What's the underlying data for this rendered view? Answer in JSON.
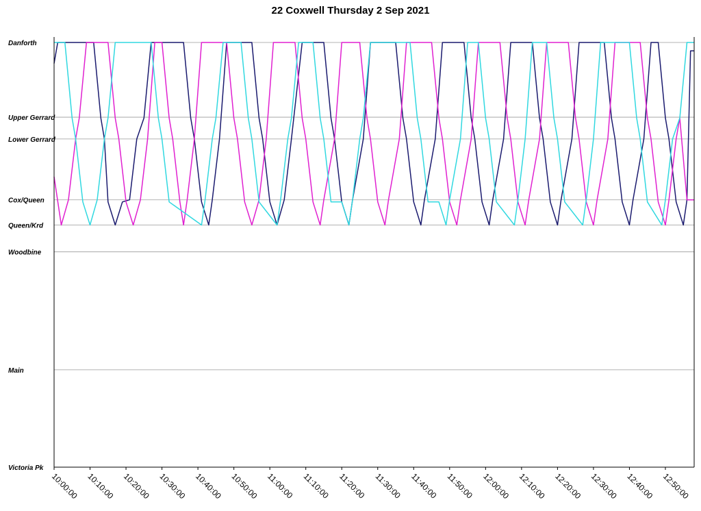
{
  "chart_data": {
    "type": "line",
    "title": "22 Coxwell Thursday 2 Sep 2021",
    "xlabel": "",
    "ylabel": "",
    "x_range": [
      "10:00:00",
      "12:58:00"
    ],
    "x_ticks": [
      "10:00:00",
      "10:10:00",
      "10:20:00",
      "10:30:00",
      "10:40:00",
      "10:50:00",
      "11:00:00",
      "11:10:00",
      "11:20:00",
      "11:30:00",
      "11:40:00",
      "11:50:00",
      "12:00:00",
      "12:10:00",
      "12:20:00",
      "12:30:00",
      "12:40:00",
      "12:50:00"
    ],
    "y_stops": [
      {
        "name": "Danforth",
        "pos": 0
      },
      {
        "name": "Upper Gerrard",
        "pos": 1.78
      },
      {
        "name": "Lower Gerrard",
        "pos": 2.3
      },
      {
        "name": "Cox/Queen",
        "pos": 3.75
      },
      {
        "name": "Queen/Krd",
        "pos": 4.35
      },
      {
        "name": "Woodbine",
        "pos": 4.99
      },
      {
        "name": "Main",
        "pos": 7.8
      },
      {
        "name": "Victoria Pk",
        "pos": 10.12
      }
    ],
    "grid": true,
    "legend": "none",
    "series": [
      {
        "color": "#1a1a6e",
        "points": [
          [
            "10:00:00",
            0.5
          ],
          [
            "10:01:00",
            0
          ],
          [
            "10:11:00",
            0
          ],
          [
            "10:13:00",
            1.8
          ],
          [
            "10:14:00",
            2.3
          ],
          [
            "10:15:00",
            3.8
          ],
          [
            "10:17:00",
            4.35
          ],
          [
            "10:19:00",
            3.8
          ],
          [
            "10:21:00",
            3.75
          ],
          [
            "10:23:00",
            2.3
          ],
          [
            "10:25:00",
            1.8
          ],
          [
            "10:27:00",
            0
          ],
          [
            "10:36:00",
            0
          ],
          [
            "10:38:00",
            1.8
          ],
          [
            "10:39:00",
            2.3
          ],
          [
            "10:41:00",
            3.8
          ],
          [
            "10:43:00",
            4.35
          ],
          [
            "10:44:00",
            3.75
          ],
          [
            "10:46:00",
            2.3
          ],
          [
            "10:48:00",
            0
          ],
          [
            "10:55:00",
            0
          ],
          [
            "10:57:00",
            1.8
          ],
          [
            "10:58:00",
            2.3
          ],
          [
            "11:00:00",
            3.8
          ],
          [
            "11:02:00",
            4.35
          ],
          [
            "11:04:00",
            3.75
          ],
          [
            "11:06:00",
            2.3
          ],
          [
            "11:09:00",
            0
          ],
          [
            "11:15:00",
            0
          ],
          [
            "11:17:00",
            1.8
          ],
          [
            "11:18:00",
            2.3
          ],
          [
            "11:20:00",
            3.8
          ],
          [
            "11:22:00",
            4.35
          ],
          [
            "11:23:00",
            3.75
          ],
          [
            "11:26:00",
            2.3
          ],
          [
            "11:28:00",
            0
          ],
          [
            "11:35:00",
            0
          ],
          [
            "11:37:00",
            1.8
          ],
          [
            "11:38:00",
            2.3
          ],
          [
            "11:40:00",
            3.8
          ],
          [
            "11:42:00",
            4.35
          ],
          [
            "11:43:00",
            3.75
          ],
          [
            "11:46:00",
            2.3
          ],
          [
            "11:48:00",
            0
          ],
          [
            "11:54:00",
            0
          ],
          [
            "11:56:00",
            1.8
          ],
          [
            "11:57:00",
            2.3
          ],
          [
            "11:59:00",
            3.8
          ],
          [
            "12:01:00",
            4.35
          ],
          [
            "12:02:00",
            3.75
          ],
          [
            "12:05:00",
            2.3
          ],
          [
            "12:07:00",
            0
          ],
          [
            "12:13:00",
            0
          ],
          [
            "12:15:00",
            1.8
          ],
          [
            "12:16:00",
            2.3
          ],
          [
            "12:18:00",
            3.8
          ],
          [
            "12:20:00",
            4.35
          ],
          [
            "12:21:00",
            3.75
          ],
          [
            "12:24:00",
            2.3
          ],
          [
            "12:26:00",
            0
          ],
          [
            "12:33:00",
            0
          ],
          [
            "12:35:00",
            1.8
          ],
          [
            "12:36:00",
            2.3
          ],
          [
            "12:38:00",
            3.8
          ],
          [
            "12:40:00",
            4.35
          ],
          [
            "12:41:00",
            3.75
          ],
          [
            "12:44:00",
            2.3
          ],
          [
            "12:46:00",
            0
          ],
          [
            "12:48:00",
            0
          ],
          [
            "12:50:00",
            1.8
          ],
          [
            "12:51:00",
            2.3
          ],
          [
            "12:53:00",
            3.8
          ],
          [
            "12:55:00",
            4.35
          ],
          [
            "12:56:00",
            3.75
          ],
          [
            "12:57:00",
            0.2
          ],
          [
            "12:58:00",
            0.2
          ]
        ]
      },
      {
        "color": "#e020d0",
        "points": [
          [
            "10:00:00",
            3.2
          ],
          [
            "10:02:00",
            4.35
          ],
          [
            "10:04:00",
            3.75
          ],
          [
            "10:06:00",
            2.3
          ],
          [
            "10:07:00",
            1.8
          ],
          [
            "10:09:00",
            0
          ],
          [
            "10:15:00",
            0
          ],
          [
            "10:17:00",
            1.8
          ],
          [
            "10:18:00",
            2.3
          ],
          [
            "10:20:00",
            3.8
          ],
          [
            "10:22:00",
            4.35
          ],
          [
            "10:24:00",
            3.75
          ],
          [
            "10:26:00",
            2.3
          ],
          [
            "10:28:00",
            0
          ],
          [
            "10:30:00",
            0
          ],
          [
            "10:32:00",
            1.8
          ],
          [
            "10:33:00",
            2.3
          ],
          [
            "10:35:00",
            3.8
          ],
          [
            "10:36:00",
            4.35
          ],
          [
            "10:37:00",
            3.75
          ],
          [
            "10:39:00",
            2.3
          ],
          [
            "10:41:00",
            0
          ],
          [
            "10:48:00",
            0
          ],
          [
            "10:50:00",
            1.8
          ],
          [
            "10:51:00",
            2.3
          ],
          [
            "10:53:00",
            3.8
          ],
          [
            "10:55:00",
            4.35
          ],
          [
            "10:57:00",
            3.75
          ],
          [
            "10:59:00",
            2.3
          ],
          [
            "11:01:00",
            0
          ],
          [
            "11:07:00",
            0
          ],
          [
            "11:09:00",
            1.8
          ],
          [
            "11:10:00",
            2.3
          ],
          [
            "11:12:00",
            3.8
          ],
          [
            "11:14:00",
            4.35
          ],
          [
            "11:15:00",
            3.75
          ],
          [
            "11:18:00",
            2.3
          ],
          [
            "11:20:00",
            0
          ],
          [
            "11:25:00",
            0
          ],
          [
            "11:27:00",
            1.8
          ],
          [
            "11:28:00",
            2.3
          ],
          [
            "11:30:00",
            3.8
          ],
          [
            "11:32:00",
            4.35
          ],
          [
            "11:33:00",
            3.75
          ],
          [
            "11:36:00",
            2.3
          ],
          [
            "11:38:00",
            0
          ],
          [
            "11:45:00",
            0
          ],
          [
            "11:47:00",
            1.8
          ],
          [
            "11:48:00",
            2.3
          ],
          [
            "11:50:00",
            3.8
          ],
          [
            "11:52:00",
            4.35
          ],
          [
            "11:53:00",
            3.75
          ],
          [
            "11:56:00",
            2.3
          ],
          [
            "11:58:00",
            0
          ],
          [
            "12:04:00",
            0
          ],
          [
            "12:06:00",
            1.8
          ],
          [
            "12:07:00",
            2.3
          ],
          [
            "12:09:00",
            3.8
          ],
          [
            "12:11:00",
            4.35
          ],
          [
            "12:12:00",
            3.75
          ],
          [
            "12:15:00",
            2.3
          ],
          [
            "12:17:00",
            0
          ],
          [
            "12:23:00",
            0
          ],
          [
            "12:25:00",
            1.8
          ],
          [
            "12:26:00",
            2.3
          ],
          [
            "12:28:00",
            3.8
          ],
          [
            "12:30:00",
            4.35
          ],
          [
            "12:31:00",
            3.75
          ],
          [
            "12:34:00",
            2.3
          ],
          [
            "12:36:00",
            0
          ],
          [
            "12:43:00",
            0
          ],
          [
            "12:45:00",
            1.8
          ],
          [
            "12:46:00",
            2.3
          ],
          [
            "12:48:00",
            3.8
          ],
          [
            "12:50:00",
            4.35
          ],
          [
            "12:51:00",
            3.75
          ],
          [
            "12:53:00",
            2.3
          ],
          [
            "12:54:00",
            1.8
          ],
          [
            "12:56:00",
            3.75
          ],
          [
            "12:58:00",
            3.75
          ]
        ]
      },
      {
        "color": "#30d8e0",
        "points": [
          [
            "10:00:00",
            0
          ],
          [
            "10:03:00",
            0
          ],
          [
            "10:05:00",
            1.8
          ],
          [
            "10:06:00",
            2.3
          ],
          [
            "10:08:00",
            3.8
          ],
          [
            "10:10:00",
            4.35
          ],
          [
            "10:12:00",
            3.75
          ],
          [
            "10:14:00",
            2.3
          ],
          [
            "10:15:00",
            1.8
          ],
          [
            "10:17:00",
            0
          ],
          [
            "10:27:00",
            0
          ],
          [
            "10:29:00",
            1.8
          ],
          [
            "10:30:00",
            2.3
          ],
          [
            "10:32:00",
            3.8
          ],
          [
            "10:41:00",
            4.35
          ],
          [
            "10:42:00",
            3.75
          ],
          [
            "10:44:00",
            2.3
          ],
          [
            "10:45:00",
            1.8
          ],
          [
            "10:47:00",
            0
          ],
          [
            "10:52:00",
            0
          ],
          [
            "10:54:00",
            1.8
          ],
          [
            "10:55:00",
            2.3
          ],
          [
            "10:57:00",
            3.8
          ],
          [
            "11:02:00",
            4.35
          ],
          [
            "11:03:00",
            3.75
          ],
          [
            "11:05:00",
            2.3
          ],
          [
            "11:06:00",
            1.8
          ],
          [
            "11:08:00",
            0
          ],
          [
            "11:12:00",
            0
          ],
          [
            "11:14:00",
            1.8
          ],
          [
            "11:15:00",
            2.3
          ],
          [
            "11:17:00",
            3.8
          ],
          [
            "11:20:00",
            3.8
          ],
          [
            "11:22:00",
            4.35
          ],
          [
            "11:23:00",
            3.75
          ],
          [
            "11:25:00",
            2.3
          ],
          [
            "11:26:00",
            1.8
          ],
          [
            "11:28:00",
            0
          ],
          [
            "11:39:00",
            0
          ],
          [
            "11:41:00",
            1.8
          ],
          [
            "11:42:00",
            2.3
          ],
          [
            "11:44:00",
            3.8
          ],
          [
            "11:47:00",
            3.8
          ],
          [
            "11:49:00",
            4.35
          ],
          [
            "11:50:00",
            3.75
          ],
          [
            "11:53:00",
            2.3
          ],
          [
            "11:55:00",
            0
          ],
          [
            "11:58:00",
            0
          ],
          [
            "12:00:00",
            1.8
          ],
          [
            "12:01:00",
            2.3
          ],
          [
            "12:03:00",
            3.8
          ],
          [
            "12:08:00",
            4.35
          ],
          [
            "12:09:00",
            3.75
          ],
          [
            "12:11:00",
            2.3
          ],
          [
            "12:13:00",
            0
          ],
          [
            "12:17:00",
            0
          ],
          [
            "12:19:00",
            1.8
          ],
          [
            "12:20:00",
            2.3
          ],
          [
            "12:22:00",
            3.8
          ],
          [
            "12:27:00",
            4.35
          ],
          [
            "12:28:00",
            3.75
          ],
          [
            "12:30:00",
            2.3
          ],
          [
            "12:32:00",
            0
          ],
          [
            "12:40:00",
            0
          ],
          [
            "12:42:00",
            1.8
          ],
          [
            "12:43:00",
            2.3
          ],
          [
            "12:45:00",
            3.8
          ],
          [
            "12:49:00",
            4.35
          ],
          [
            "12:50:00",
            3.75
          ],
          [
            "12:52:00",
            2.3
          ],
          [
            "12:54:00",
            1.8
          ],
          [
            "12:56:00",
            0
          ],
          [
            "12:58:00",
            0
          ]
        ]
      }
    ]
  }
}
